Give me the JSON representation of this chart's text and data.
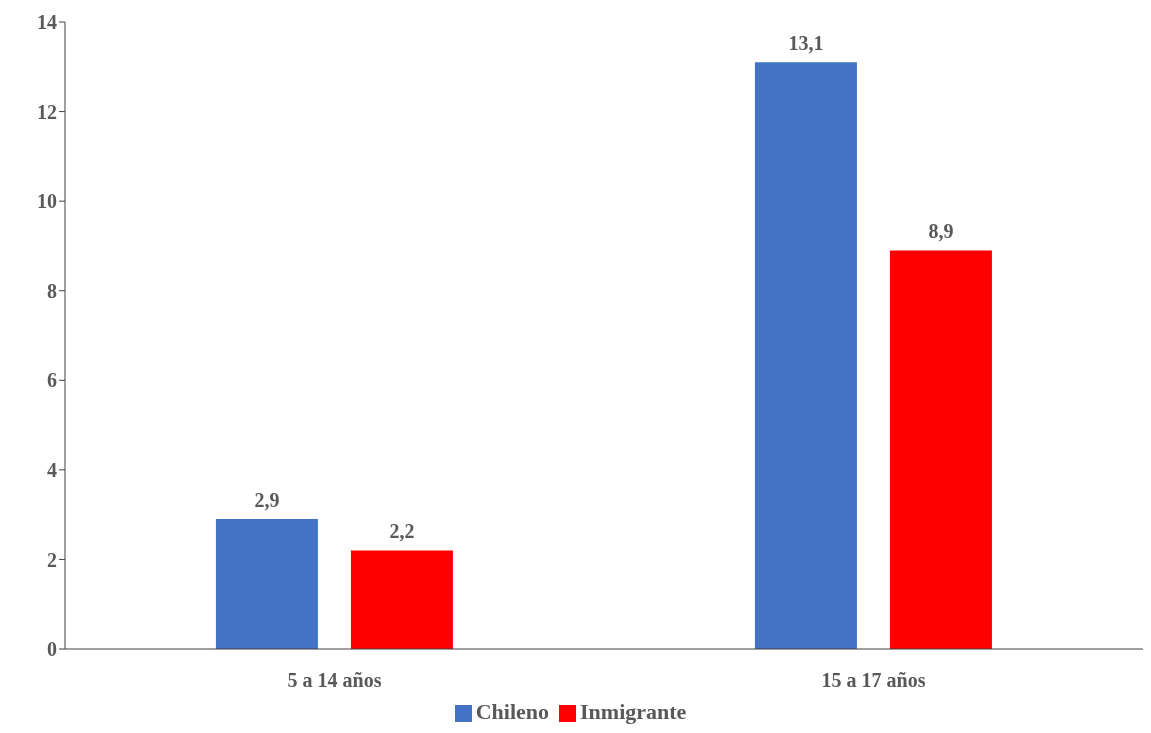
{
  "chart_data": {
    "type": "bar",
    "categories": [
      "5 a 14 años",
      "15 a 17 años"
    ],
    "series": [
      {
        "name": "Chileno",
        "color": "#4472c4",
        "values": [
          2.9,
          13.1
        ],
        "value_labels": [
          "2,9",
          "13,1"
        ]
      },
      {
        "name": "Inmigrante",
        "color": "#ff0000",
        "values": [
          2.2,
          8.9
        ],
        "value_labels": [
          "2,2",
          "8,9"
        ]
      }
    ],
    "ylim": [
      0,
      14
    ],
    "yticks": [
      0,
      2,
      4,
      6,
      8,
      10,
      12,
      14
    ],
    "grid": false,
    "legend": "bottom"
  }
}
